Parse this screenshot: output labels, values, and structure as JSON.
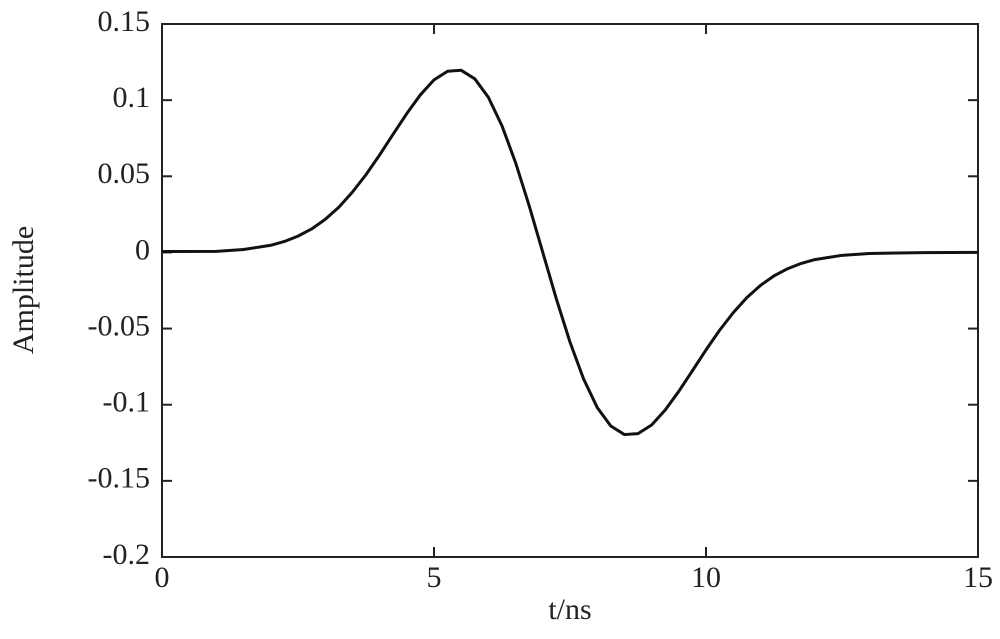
{
  "chart_data": {
    "type": "line",
    "x_label": "t/ns",
    "y_label": "Amplitude",
    "x": [
      0,
      1,
      1.5,
      2,
      2.25,
      2.5,
      2.75,
      3,
      3.25,
      3.5,
      3.75,
      4,
      4.25,
      4.5,
      4.75,
      5,
      5.25,
      5.5,
      5.75,
      6,
      6.25,
      6.5,
      6.75,
      7,
      7.25,
      7.5,
      7.75,
      8,
      8.25,
      8.5,
      8.75,
      9,
      9.25,
      9.5,
      9.75,
      10,
      10.25,
      10.5,
      10.75,
      11,
      11.25,
      11.5,
      11.75,
      12,
      12.5,
      13,
      14,
      15
    ],
    "series": [
      {
        "color": "#111111",
        "values": [
          0.0006,
          0.0007,
          0.0019,
          0.0047,
          0.0072,
          0.0107,
          0.0154,
          0.0217,
          0.0297,
          0.0396,
          0.0511,
          0.064,
          0.0777,
          0.0912,
          0.1035,
          0.1133,
          0.119,
          0.1196,
          0.114,
          0.1018,
          0.0831,
          0.0589,
          0.0306,
          0,
          -0.0306,
          -0.0589,
          -0.0831,
          -0.1018,
          -0.114,
          -0.1196,
          -0.119,
          -0.1133,
          -0.1035,
          -0.0912,
          -0.0777,
          -0.064,
          -0.0511,
          -0.0396,
          -0.0297,
          -0.0217,
          -0.0154,
          -0.0107,
          -0.0072,
          -0.0047,
          -0.0019,
          -0.0007,
          -0.0001,
          0
        ]
      }
    ],
    "xlim": [
      0,
      15
    ],
    "xticks": [
      0,
      5,
      10,
      15
    ],
    "ylim": [
      -0.2,
      0.15
    ],
    "yticks": [
      -0.2,
      -0.15,
      -0.1,
      -0.05,
      0,
      0.05,
      0.1,
      0.15
    ]
  }
}
